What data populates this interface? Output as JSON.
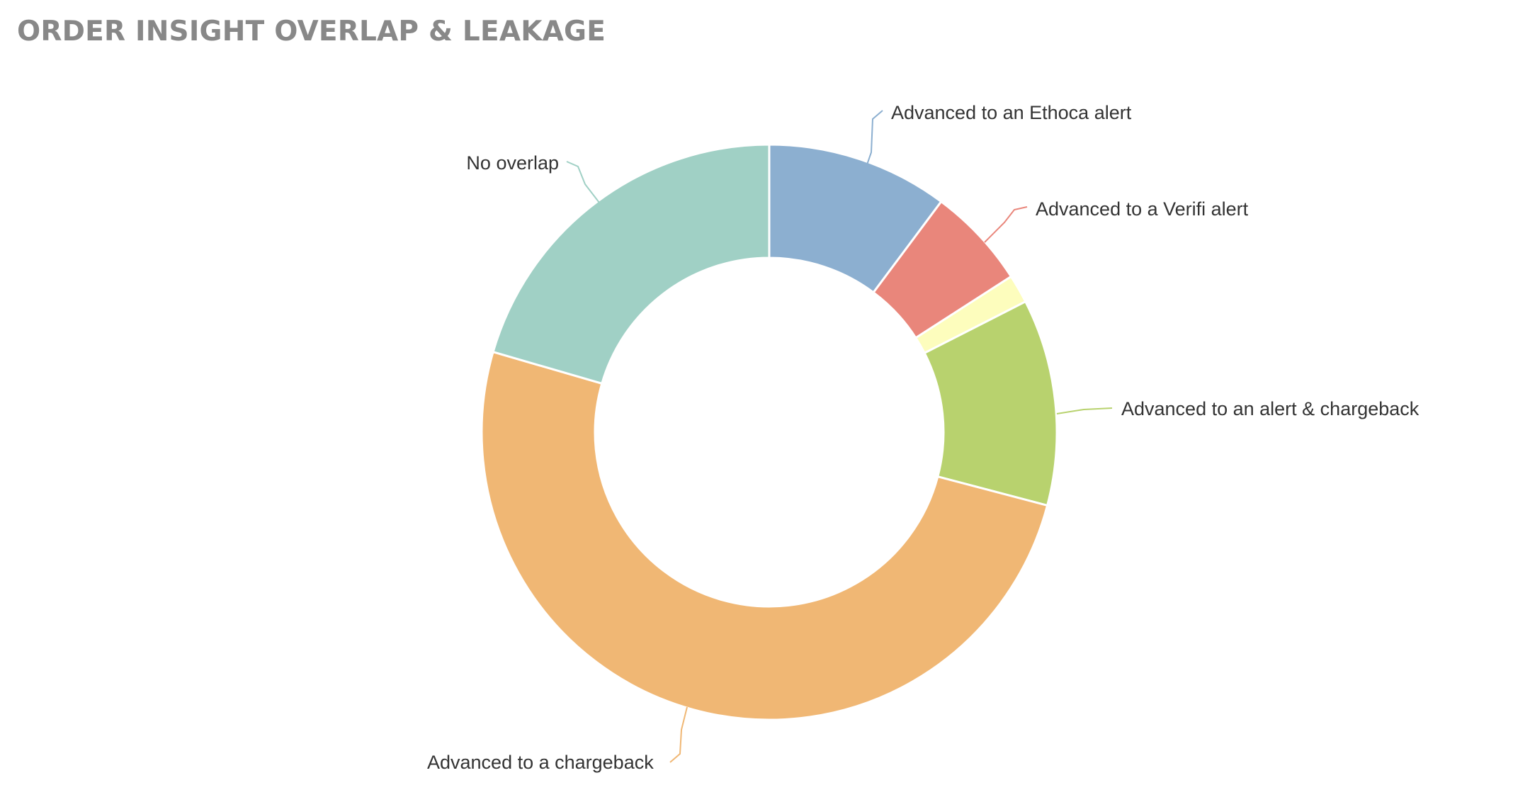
{
  "chart_data": {
    "type": "pie",
    "title": "ORDER INSIGHT OVERLAP & LEAKAGE",
    "donut": true,
    "start": "top",
    "slices": [
      {
        "label": "Advanced to an Ethoca alert",
        "value": 10.2,
        "color": "#8cafd0"
      },
      {
        "label": "Advanced to a Verifi alert",
        "value": 5.7,
        "color": "#e9867b"
      },
      {
        "label": "",
        "value": 1.6,
        "color": "#fdfdbd"
      },
      {
        "label": "Advanced to an alert & chargeback",
        "value": 11.6,
        "color": "#b8d26e"
      },
      {
        "label": "Advanced to a chargeback",
        "value": 50.4,
        "color": "#f0b774"
      },
      {
        "label": "No overlap",
        "value": 20.5,
        "color": "#a0d0c5"
      }
    ]
  }
}
